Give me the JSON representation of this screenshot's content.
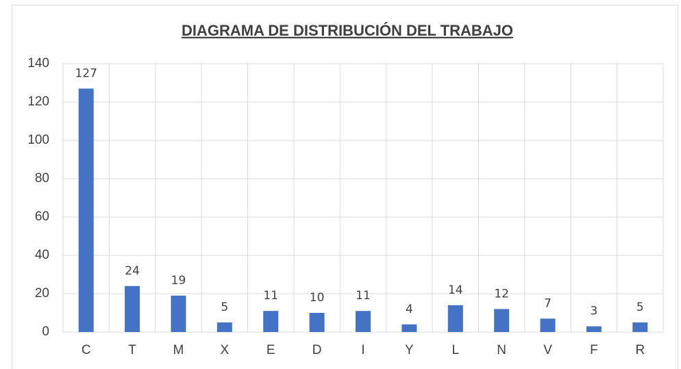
{
  "chart_data": {
    "type": "bar",
    "title": "DIAGRAMA DE DISTRIBUCIÓN DEL TRABAJO",
    "categories": [
      "C",
      "T",
      "M",
      "X",
      "E",
      "D",
      "I",
      "Y",
      "L",
      "N",
      "V",
      "F",
      "R"
    ],
    "values": [
      127,
      24,
      19,
      5,
      11,
      10,
      11,
      4,
      14,
      12,
      7,
      3,
      5
    ],
    "color": "#4472c4",
    "ylim": [
      0,
      140
    ],
    "yticks": [
      0,
      20,
      40,
      60,
      80,
      100,
      120,
      140
    ],
    "grid": true
  }
}
